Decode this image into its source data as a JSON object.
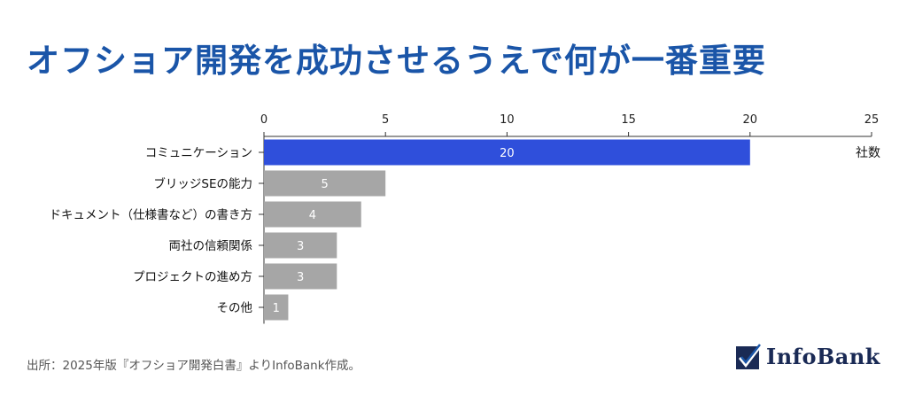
{
  "title": "オフショア開発を成功させるうえで何が一番重要",
  "source": "出所：2025年版『オフショア開発白書』よりInfoBank作成。",
  "logo": {
    "text": "InfoBank",
    "icon": "checkmark-box-icon"
  },
  "colors": {
    "title": "#1a55a8",
    "highlight_bar": "#2f4fdb",
    "bar": "#a6a6a6",
    "logo": "#1a2a55"
  },
  "chart_data": {
    "type": "bar",
    "orientation": "horizontal",
    "categories": [
      "コミュニケーション",
      "ブリッジSEの能力",
      "ドキュメント（仕様書など）の書き方",
      "両社の信頼関係",
      "プロジェクトの進め方",
      "その他"
    ],
    "values": [
      20,
      5,
      4,
      3,
      3,
      1
    ],
    "data_labels": [
      "20",
      "5",
      "4",
      "3",
      "3",
      "1"
    ],
    "xlim": [
      0,
      25
    ],
    "xticks": [
      0,
      5,
      10,
      15,
      20,
      25
    ],
    "xtick_labels": [
      "0",
      "5",
      "10",
      "15",
      "20",
      "25"
    ],
    "xaxis_position": "top",
    "unit_label": "社数",
    "highlight_index": 0,
    "grid": false,
    "legend": "none"
  }
}
